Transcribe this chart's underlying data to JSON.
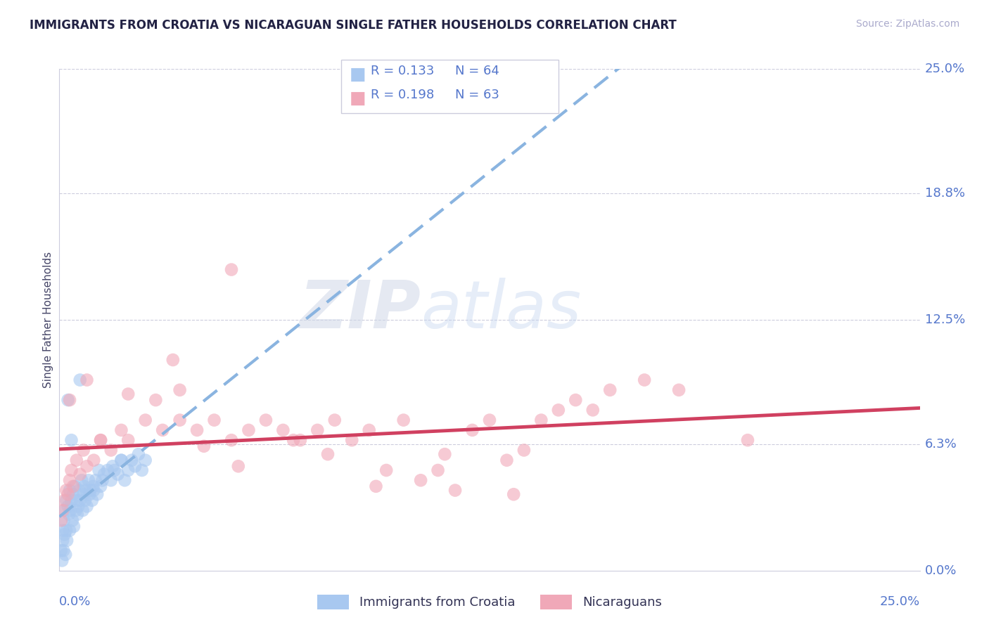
{
  "title": "IMMIGRANTS FROM CROATIA VS NICARAGUAN SINGLE FATHER HOUSEHOLDS CORRELATION CHART",
  "source_text": "Source: ZipAtlas.com",
  "ylabel": "Single Father Households",
  "ytick_labels": [
    "0.0%",
    "6.3%",
    "12.5%",
    "18.8%",
    "25.0%"
  ],
  "ytick_values": [
    0.0,
    6.3,
    12.5,
    18.8,
    25.0
  ],
  "xlim": [
    0.0,
    25.0
  ],
  "ylim": [
    0.0,
    25.0
  ],
  "legend_r1": "R = 0.133",
  "legend_n1": "N = 64",
  "legend_r2": "R = 0.198",
  "legend_n2": "N = 63",
  "color_croatia": "#a8c8f0",
  "color_nicaragua": "#f0a8b8",
  "color_line_croatia": "#8ab4e0",
  "color_line_nicaragua": "#d04060",
  "color_axis_labels": "#5577cc",
  "title_color": "#222244",
  "background_color": "#ffffff",
  "croatia_x": [
    0.05,
    0.08,
    0.1,
    0.1,
    0.12,
    0.13,
    0.15,
    0.15,
    0.18,
    0.2,
    0.2,
    0.22,
    0.25,
    0.28,
    0.3,
    0.3,
    0.32,
    0.35,
    0.38,
    0.4,
    0.42,
    0.45,
    0.48,
    0.5,
    0.52,
    0.55,
    0.58,
    0.6,
    0.65,
    0.68,
    0.7,
    0.72,
    0.75,
    0.78,
    0.8,
    0.85,
    0.88,
    0.9,
    0.95,
    0.98,
    1.0,
    1.05,
    1.1,
    1.15,
    1.2,
    1.25,
    1.3,
    1.4,
    1.5,
    1.55,
    1.6,
    1.7,
    1.8,
    1.9,
    2.0,
    2.1,
    2.2,
    2.3,
    2.4,
    2.5,
    0.25,
    0.35,
    1.8,
    0.6
  ],
  "croatia_y": [
    1.0,
    0.5,
    2.0,
    1.5,
    1.0,
    2.5,
    1.8,
    3.0,
    0.8,
    2.0,
    3.5,
    1.5,
    3.2,
    2.8,
    2.0,
    4.0,
    3.0,
    3.5,
    2.5,
    3.8,
    2.2,
    4.2,
    3.0,
    3.5,
    2.8,
    3.2,
    4.0,
    3.5,
    4.5,
    3.0,
    3.8,
    4.2,
    3.5,
    4.0,
    3.2,
    4.5,
    3.8,
    4.0,
    3.5,
    4.2,
    4.0,
    4.5,
    3.8,
    5.0,
    4.2,
    4.5,
    4.8,
    5.0,
    4.5,
    5.2,
    5.0,
    4.8,
    5.5,
    4.5,
    5.0,
    5.5,
    5.2,
    5.8,
    5.0,
    5.5,
    8.5,
    6.5,
    5.5,
    9.5
  ],
  "nicaragua_x": [
    0.05,
    0.1,
    0.15,
    0.2,
    0.25,
    0.3,
    0.35,
    0.4,
    0.5,
    0.6,
    0.7,
    0.8,
    1.0,
    1.2,
    1.5,
    1.8,
    2.0,
    2.5,
    3.0,
    3.5,
    4.0,
    4.5,
    5.0,
    5.5,
    6.0,
    6.5,
    7.0,
    7.5,
    8.0,
    8.5,
    9.0,
    9.5,
    10.0,
    10.5,
    11.0,
    11.5,
    12.0,
    12.5,
    13.0,
    13.5,
    14.0,
    14.5,
    15.0,
    15.5,
    16.0,
    17.0,
    18.0,
    20.0,
    0.3,
    0.8,
    1.2,
    2.0,
    2.8,
    3.5,
    4.2,
    5.2,
    6.8,
    7.8,
    9.2,
    11.2,
    13.2,
    5.0,
    3.3
  ],
  "nicaragua_y": [
    2.5,
    3.0,
    3.5,
    4.0,
    3.8,
    4.5,
    5.0,
    4.2,
    5.5,
    4.8,
    6.0,
    5.2,
    5.5,
    6.5,
    6.0,
    7.0,
    6.5,
    7.5,
    7.0,
    7.5,
    7.0,
    7.5,
    6.5,
    7.0,
    7.5,
    7.0,
    6.5,
    7.0,
    7.5,
    6.5,
    7.0,
    5.0,
    7.5,
    4.5,
    5.0,
    4.0,
    7.0,
    7.5,
    5.5,
    6.0,
    7.5,
    8.0,
    8.5,
    8.0,
    9.0,
    9.5,
    9.0,
    6.5,
    8.5,
    9.5,
    6.5,
    8.8,
    8.5,
    9.0,
    6.2,
    5.2,
    6.5,
    5.8,
    4.2,
    5.8,
    3.8,
    15.0,
    10.5
  ]
}
